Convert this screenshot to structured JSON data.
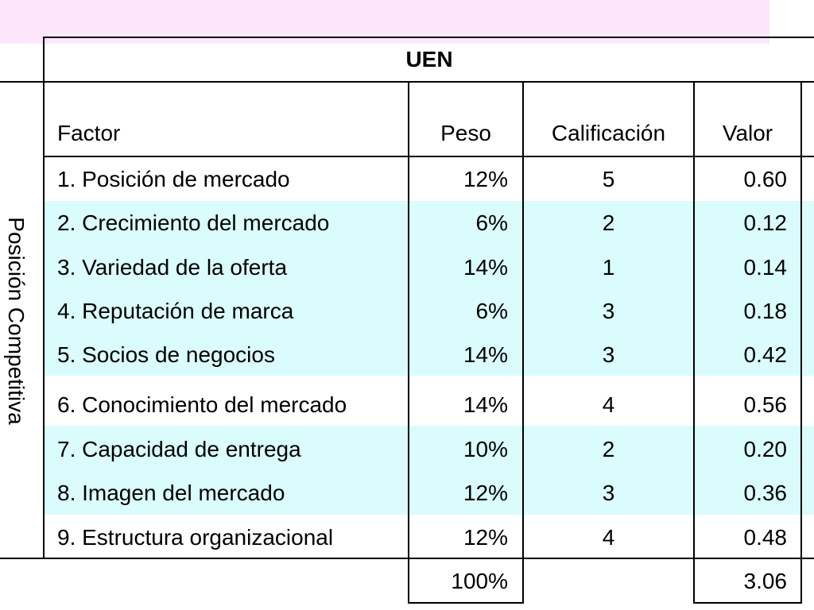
{
  "table": {
    "group_header": "UEN",
    "side_label": "Posición Competitiva",
    "columns": [
      "Factor",
      "Peso",
      "Calificación",
      "Valor"
    ],
    "rows": [
      {
        "factor": "1. Posición de mercado",
        "peso": "12%",
        "calificacion": "5",
        "valor": "0.60"
      },
      {
        "factor": "2. Crecimiento del mercado",
        "peso": "6%",
        "calificacion": "2",
        "valor": "0.12"
      },
      {
        "factor": "3. Variedad de la oferta",
        "peso": "14%",
        "calificacion": "1",
        "valor": "0.14"
      },
      {
        "factor": "4. Reputación de marca",
        "peso": "6%",
        "calificacion": "3",
        "valor": "0.18"
      },
      {
        "factor": "5. Socios de negocios",
        "peso": "14%",
        "calificacion": "3",
        "valor": "0.42"
      },
      {
        "factor": "6. Conocimiento del mercado",
        "peso": "14%",
        "calificacion": "4",
        "valor": "0.56"
      },
      {
        "factor": "7. Capacidad de entrega",
        "peso": "10%",
        "calificacion": "2",
        "valor": "0.20"
      },
      {
        "factor": "8. Imagen del mercado",
        "peso": "12%",
        "calificacion": "3",
        "valor": "0.36"
      },
      {
        "factor": "9. Estructura organizacional",
        "peso": "12%",
        "calificacion": "4",
        "valor": "0.48"
      }
    ],
    "totals": {
      "peso": "100%",
      "valor": "3.06"
    },
    "colors": {
      "header_band": "#fce6fc",
      "highlight_rows": "#dafcfc"
    }
  }
}
